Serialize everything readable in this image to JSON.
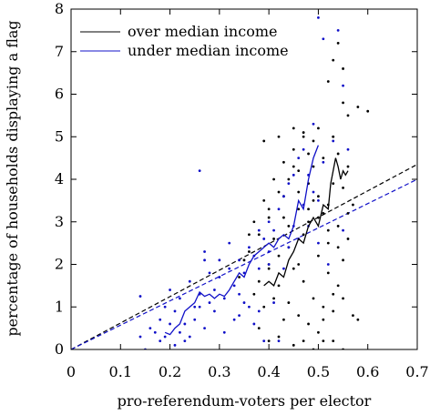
{
  "chart_data": {
    "type": "scatter",
    "xlabel": "pro-referendum-voters per elector",
    "ylabel": "percentage of households displaying a flag",
    "xlim": [
      0,
      0.7
    ],
    "ylim": [
      0,
      8
    ],
    "xticks": [
      0,
      0.1,
      0.2,
      0.3,
      0.4,
      0.5,
      0.6,
      0.7
    ],
    "yticks": [
      0,
      1,
      2,
      3,
      4,
      5,
      6,
      7,
      8
    ],
    "xtick_labels": [
      "0",
      "0.1",
      "0.2",
      "0.3",
      "0.4",
      "0.5",
      "0.6",
      "0.7"
    ],
    "ytick_labels": [
      "0",
      "1",
      "2",
      "3",
      "4",
      "5",
      "6",
      "7",
      "8"
    ],
    "grid": false,
    "legend_position": "top-left",
    "colors": {
      "over": "#000000",
      "under": "#1010c8"
    },
    "series": [
      {
        "name": "over median income",
        "color": "#000000",
        "points": [
          [
            0.39,
            4.9
          ],
          [
            0.42,
            5.0
          ],
          [
            0.45,
            5.2
          ],
          [
            0.47,
            5.0
          ],
          [
            0.49,
            4.3
          ],
          [
            0.5,
            3.6
          ],
          [
            0.52,
            2.5
          ],
          [
            0.53,
            5.0
          ],
          [
            0.48,
            3.9
          ],
          [
            0.46,
            3.3
          ],
          [
            0.44,
            2.9
          ],
          [
            0.43,
            3.1
          ],
          [
            0.41,
            2.6
          ],
          [
            0.4,
            2.0
          ],
          [
            0.42,
            1.5
          ],
          [
            0.44,
            1.1
          ],
          [
            0.46,
            0.8
          ],
          [
            0.48,
            0.6
          ],
          [
            0.5,
            0.4
          ],
          [
            0.38,
            0.5
          ],
          [
            0.4,
            0.2
          ],
          [
            0.42,
            0.3
          ],
          [
            0.45,
            0.1
          ],
          [
            0.47,
            0.2
          ],
          [
            0.49,
            0.0
          ],
          [
            0.51,
            1.0
          ],
          [
            0.53,
            1.3
          ],
          [
            0.55,
            2.1
          ],
          [
            0.57,
            3.4
          ],
          [
            0.55,
            3.8
          ],
          [
            0.53,
            3.9
          ],
          [
            0.52,
            6.3
          ],
          [
            0.53,
            6.8
          ],
          [
            0.54,
            7.2
          ],
          [
            0.55,
            6.6
          ],
          [
            0.56,
            5.5
          ],
          [
            0.58,
            5.7
          ],
          [
            0.6,
            5.6
          ],
          [
            0.55,
            5.8
          ],
          [
            0.53,
            5.0
          ],
          [
            0.54,
            4.6
          ],
          [
            0.56,
            4.3
          ],
          [
            0.51,
            3.2
          ],
          [
            0.49,
            3.5
          ],
          [
            0.47,
            2.7
          ],
          [
            0.46,
            2.0
          ],
          [
            0.44,
            2.4
          ],
          [
            0.42,
            2.2
          ],
          [
            0.4,
            1.9
          ],
          [
            0.38,
            1.6
          ],
          [
            0.36,
            2.3
          ],
          [
            0.35,
            2.1
          ],
          [
            0.34,
            1.7
          ],
          [
            0.36,
            2.7
          ],
          [
            0.37,
            3.0
          ],
          [
            0.38,
            2.7
          ],
          [
            0.4,
            3.1
          ],
          [
            0.43,
            3.6
          ],
          [
            0.46,
            4.2
          ],
          [
            0.48,
            4.6
          ],
          [
            0.45,
            4.7
          ],
          [
            0.43,
            4.4
          ],
          [
            0.41,
            4.0
          ],
          [
            0.39,
            3.5
          ],
          [
            0.5,
            2.2
          ],
          [
            0.52,
            1.8
          ],
          [
            0.54,
            1.5
          ],
          [
            0.56,
            2.6
          ],
          [
            0.57,
            0.8
          ],
          [
            0.58,
            0.7
          ],
          [
            0.55,
            0.0
          ],
          [
            0.53,
            0.2
          ],
          [
            0.51,
            0.7
          ],
          [
            0.49,
            1.2
          ],
          [
            0.47,
            1.6
          ],
          [
            0.45,
            1.9
          ],
          [
            0.43,
            0.7
          ],
          [
            0.41,
            1.2
          ],
          [
            0.39,
            1.0
          ],
          [
            0.37,
            1.3
          ],
          [
            0.48,
            3.0
          ],
          [
            0.5,
            3.1
          ],
          [
            0.52,
            3.4
          ],
          [
            0.54,
            2.9
          ],
          [
            0.56,
            3.2
          ],
          [
            0.51,
            4.5
          ],
          [
            0.49,
            4.9
          ],
          [
            0.47,
            5.1
          ],
          [
            0.5,
            5.2
          ],
          [
            0.45,
            4.3
          ],
          [
            0.42,
            3.7
          ],
          [
            0.4,
            3.3
          ],
          [
            0.44,
            4.0
          ],
          [
            0.46,
            3.7
          ],
          [
            0.48,
            3.3
          ],
          [
            0.52,
            2.8
          ],
          [
            0.54,
            2.4
          ],
          [
            0.55,
            1.2
          ],
          [
            0.53,
            0.9
          ],
          [
            0.51,
            0.2
          ]
        ],
        "trend": [
          [
            0.39,
            1.5
          ],
          [
            0.4,
            1.6
          ],
          [
            0.41,
            1.5
          ],
          [
            0.42,
            1.8
          ],
          [
            0.43,
            1.7
          ],
          [
            0.44,
            2.1
          ],
          [
            0.45,
            2.3
          ],
          [
            0.46,
            2.6
          ],
          [
            0.47,
            2.5
          ],
          [
            0.48,
            2.9
          ],
          [
            0.49,
            3.1
          ],
          [
            0.5,
            2.9
          ],
          [
            0.51,
            3.4
          ],
          [
            0.52,
            3.3
          ],
          [
            0.525,
            3.9
          ],
          [
            0.53,
            4.2
          ],
          [
            0.535,
            4.5
          ],
          [
            0.54,
            4.3
          ],
          [
            0.545,
            4.0
          ],
          [
            0.55,
            4.2
          ],
          [
            0.555,
            4.1
          ],
          [
            0.56,
            4.2
          ]
        ],
        "fit": [
          [
            0,
            0
          ],
          [
            0.7,
            4.35
          ]
        ]
      },
      {
        "name": "under median income",
        "color": "#1010c8",
        "points": [
          [
            0.14,
            1.25
          ],
          [
            0.14,
            0.3
          ],
          [
            0.15,
            0.0
          ],
          [
            0.16,
            0.5
          ],
          [
            0.17,
            0.4
          ],
          [
            0.18,
            0.7
          ],
          [
            0.19,
            0.3
          ],
          [
            0.2,
            0.6
          ],
          [
            0.21,
            0.9
          ],
          [
            0.22,
            1.2
          ],
          [
            0.22,
            0.4
          ],
          [
            0.23,
            0.6
          ],
          [
            0.24,
            0.3
          ],
          [
            0.24,
            1.6
          ],
          [
            0.25,
            1.0
          ],
          [
            0.26,
            1.3
          ],
          [
            0.26,
            4.2
          ],
          [
            0.27,
            2.3
          ],
          [
            0.27,
            0.5
          ],
          [
            0.28,
            1.1
          ],
          [
            0.29,
            1.4
          ],
          [
            0.3,
            1.7
          ],
          [
            0.31,
            1.2
          ],
          [
            0.31,
            0.4
          ],
          [
            0.32,
            1.9
          ],
          [
            0.33,
            1.5
          ],
          [
            0.34,
            2.1
          ],
          [
            0.34,
            0.8
          ],
          [
            0.35,
            1.8
          ],
          [
            0.36,
            2.4
          ],
          [
            0.37,
            2.2
          ],
          [
            0.38,
            1.9
          ],
          [
            0.38,
            0.9
          ],
          [
            0.39,
            2.6
          ],
          [
            0.4,
            2.3
          ],
          [
            0.4,
            3.0
          ],
          [
            0.41,
            2.8
          ],
          [
            0.42,
            3.3
          ],
          [
            0.42,
            0.2
          ],
          [
            0.43,
            3.6
          ],
          [
            0.44,
            3.9
          ],
          [
            0.45,
            4.1
          ],
          [
            0.46,
            4.5
          ],
          [
            0.46,
            2.6
          ],
          [
            0.47,
            4.7
          ],
          [
            0.48,
            4.1
          ],
          [
            0.48,
            2.9
          ],
          [
            0.49,
            5.3
          ],
          [
            0.5,
            7.8
          ],
          [
            0.51,
            7.3
          ],
          [
            0.5,
            3.5
          ],
          [
            0.51,
            4.4
          ],
          [
            0.43,
            1.9
          ],
          [
            0.41,
            1.1
          ],
          [
            0.39,
            0.2
          ],
          [
            0.37,
            0.6
          ],
          [
            0.35,
            1.1
          ],
          [
            0.33,
            0.7
          ],
          [
            0.32,
            2.5
          ],
          [
            0.3,
            2.1
          ],
          [
            0.29,
            0.9
          ],
          [
            0.28,
            1.8
          ],
          [
            0.27,
            2.1
          ],
          [
            0.26,
            1.0
          ],
          [
            0.25,
            0.7
          ],
          [
            0.23,
            0.2
          ],
          [
            0.21,
            0.1
          ],
          [
            0.2,
            1.4
          ],
          [
            0.19,
            1.0
          ],
          [
            0.18,
            0.2
          ],
          [
            0.44,
            2.4
          ],
          [
            0.45,
            2.9
          ],
          [
            0.47,
            3.4
          ],
          [
            0.49,
            3.7
          ],
          [
            0.5,
            2.5
          ],
          [
            0.52,
            2.0
          ],
          [
            0.36,
            1.0
          ],
          [
            0.34,
            1.3
          ],
          [
            0.38,
            2.8
          ],
          [
            0.4,
            2.0
          ],
          [
            0.55,
            6.2
          ],
          [
            0.56,
            4.7
          ],
          [
            0.55,
            2.8
          ],
          [
            0.54,
            7.5
          ],
          [
            0.53,
            4.9
          ]
        ],
        "trend": [
          [
            0.19,
            0.4
          ],
          [
            0.2,
            0.35
          ],
          [
            0.21,
            0.5
          ],
          [
            0.22,
            0.6
          ],
          [
            0.23,
            0.9
          ],
          [
            0.24,
            1.0
          ],
          [
            0.25,
            1.1
          ],
          [
            0.26,
            1.35
          ],
          [
            0.27,
            1.25
          ],
          [
            0.28,
            1.3
          ],
          [
            0.29,
            1.2
          ],
          [
            0.3,
            1.3
          ],
          [
            0.31,
            1.25
          ],
          [
            0.32,
            1.4
          ],
          [
            0.33,
            1.6
          ],
          [
            0.34,
            1.8
          ],
          [
            0.35,
            1.7
          ],
          [
            0.36,
            2.0
          ],
          [
            0.37,
            2.2
          ],
          [
            0.38,
            2.3
          ],
          [
            0.39,
            2.4
          ],
          [
            0.4,
            2.5
          ],
          [
            0.41,
            2.4
          ],
          [
            0.42,
            2.6
          ],
          [
            0.43,
            2.7
          ],
          [
            0.44,
            2.6
          ],
          [
            0.45,
            2.9
          ],
          [
            0.46,
            3.5
          ],
          [
            0.47,
            3.3
          ],
          [
            0.48,
            4.0
          ],
          [
            0.49,
            4.5
          ],
          [
            0.5,
            4.8
          ]
        ],
        "fit": [
          [
            0,
            0
          ],
          [
            0.7,
            4.0
          ]
        ]
      }
    ]
  }
}
